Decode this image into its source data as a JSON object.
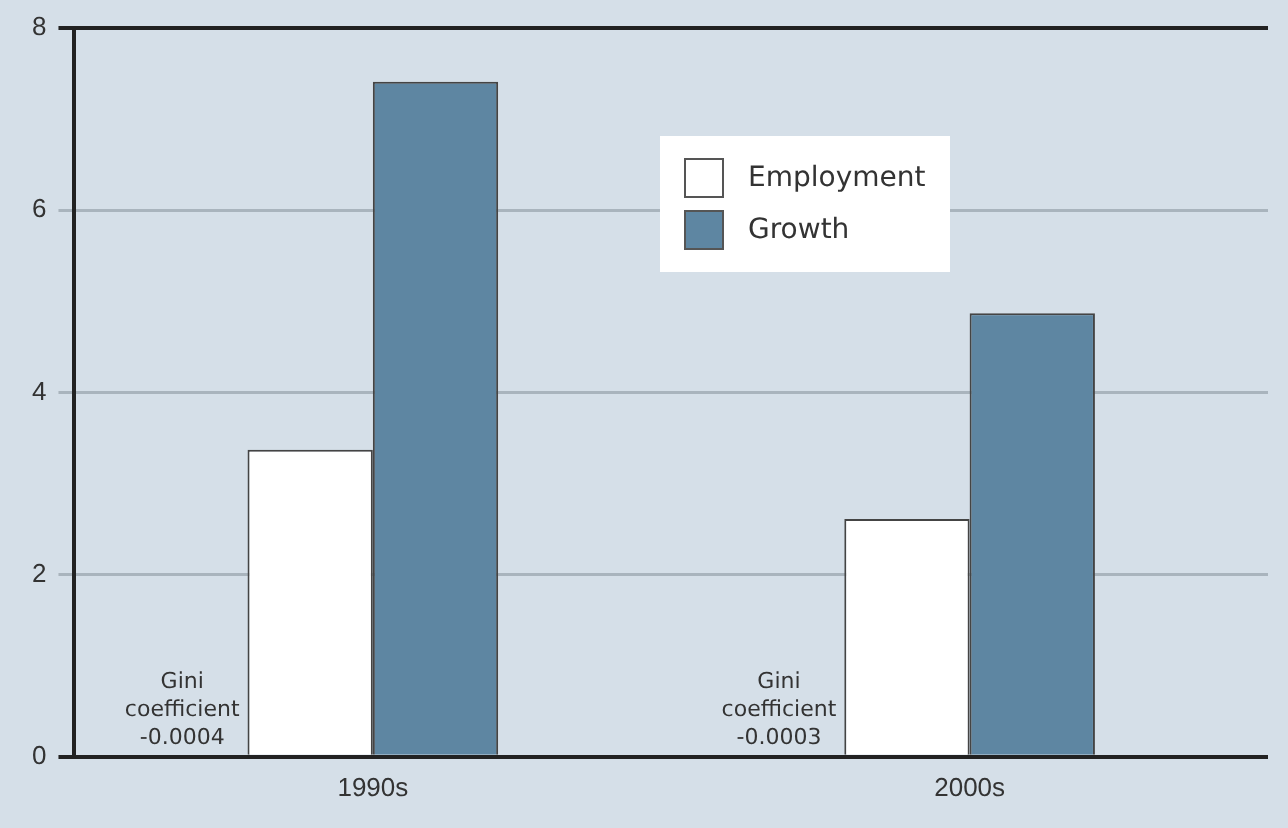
{
  "chart_data": {
    "type": "bar",
    "categories": [
      "1990s",
      "2000s"
    ],
    "series": [
      {
        "name": "Employment",
        "color": "#ffffff",
        "values": [
          3.37,
          2.61
        ]
      },
      {
        "name": "Growth",
        "color": "#5e86a2",
        "values": [
          7.41,
          4.87
        ]
      }
    ],
    "ylim": [
      0,
      8
    ],
    "yticks": [
      0,
      2,
      4,
      6,
      8
    ],
    "grid": "y",
    "legend": "top",
    "annotations": [
      "Gini\ncoefficient\n-0.0004",
      "Gini\ncoefficient\n-0.0003"
    ]
  }
}
